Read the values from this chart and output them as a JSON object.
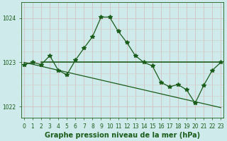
{
  "title": "Graphe pression niveau de la mer (hPa)",
  "background_color": "#ceeaea",
  "plot_bg_color": "#ceeaea",
  "grid_color_major": "#b0d4d4",
  "grid_color_minor": "#c8e6e6",
  "line_color": "#1a5c1a",
  "marker_color": "#1a5c1a",
  "x_values": [
    0,
    1,
    2,
    3,
    4,
    5,
    6,
    7,
    8,
    9,
    10,
    11,
    12,
    13,
    14,
    15,
    16,
    17,
    18,
    19,
    20,
    21,
    22,
    23
  ],
  "y_jagged": [
    1022.95,
    1023.0,
    1022.95,
    1023.15,
    1022.82,
    1022.72,
    1023.05,
    1023.32,
    1023.58,
    1024.02,
    1024.02,
    1023.7,
    1023.45,
    1023.15,
    1023.0,
    1022.92,
    1022.55,
    1022.45,
    1022.5,
    1022.38,
    1022.08,
    1022.48,
    1022.82,
    1023.0
  ],
  "flat_line": [
    [
      2,
      1023.0
    ],
    [
      23,
      1023.0
    ]
  ],
  "diag_line": [
    [
      0,
      1023.0
    ],
    [
      23,
      1021.98
    ]
  ],
  "ylim_min": 1021.75,
  "ylim_max": 1024.35,
  "yticks": [
    1022,
    1023,
    1024
  ],
  "xlim_min": -0.3,
  "xlim_max": 23.3,
  "xtick_labels": [
    "0",
    "1",
    "2",
    "3",
    "4",
    "5",
    "6",
    "7",
    "8",
    "9",
    "10",
    "11",
    "12",
    "13",
    "14",
    "15",
    "16",
    "17",
    "18",
    "19",
    "20",
    "21",
    "22",
    "23"
  ],
  "title_fontsize": 7.0,
  "tick_fontsize": 5.5,
  "line_width": 0.9,
  "marker_size": 4.0
}
